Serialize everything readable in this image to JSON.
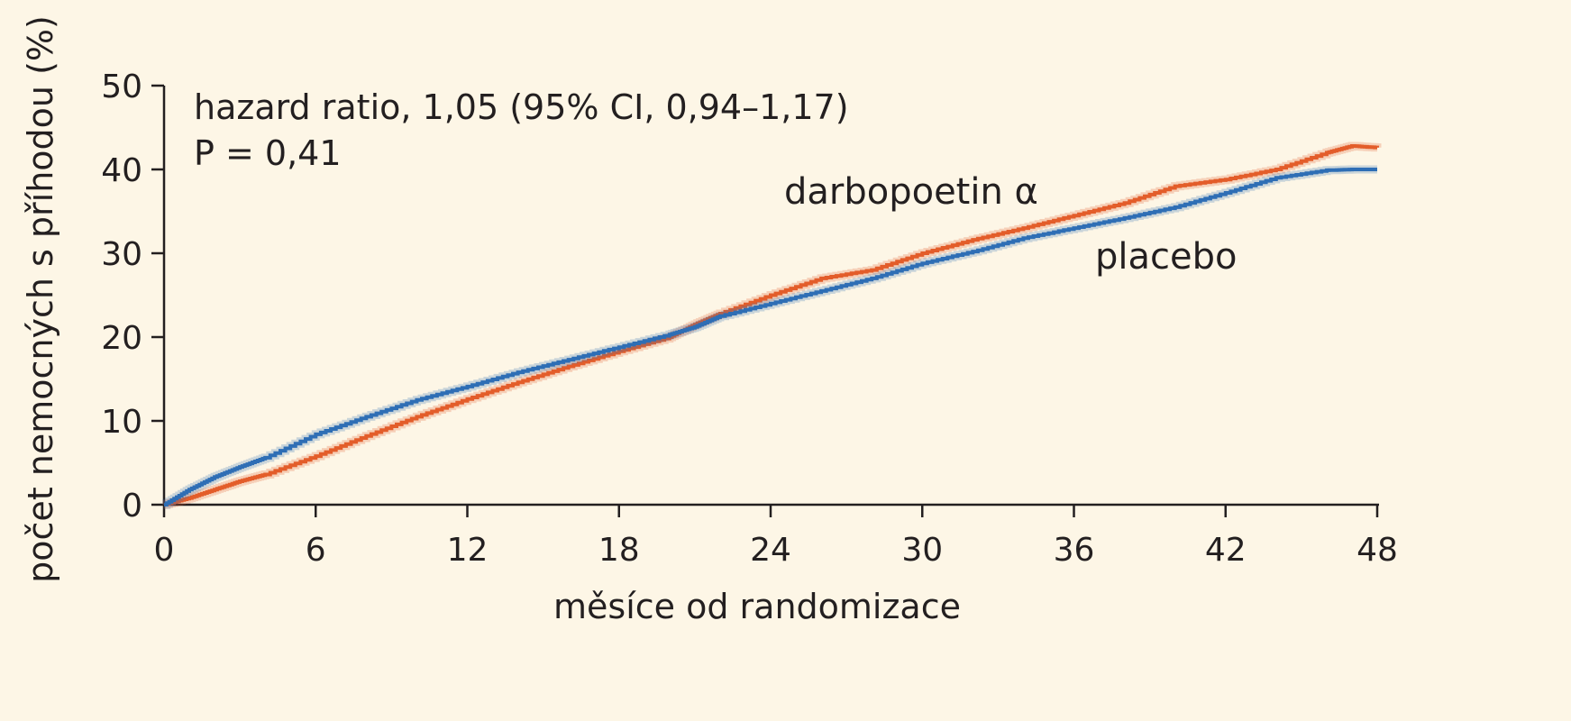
{
  "chart_data": {
    "type": "line",
    "xlabel": "měsíce od randomizace",
    "ylabel": "počet nemocných s příhodou (%)",
    "xlim": [
      0,
      48
    ],
    "ylim": [
      0,
      50
    ],
    "xticks": [
      "0",
      "6",
      "12",
      "18",
      "24",
      "30",
      "36",
      "42",
      "48"
    ],
    "yticks": [
      "0",
      "10",
      "20",
      "30",
      "40",
      "50"
    ],
    "grid": false,
    "annotations": [
      "hazard ratio, 1,05 (95% CI, 0,94–1,17)",
      "P = 0,41"
    ],
    "series": [
      {
        "name": "darbopoetin α",
        "color": "#e35d2a",
        "x": [
          0,
          1,
          2,
          3,
          4,
          6,
          8,
          10,
          12,
          14,
          16,
          18,
          20,
          21,
          22,
          24,
          26,
          28,
          30,
          32,
          34,
          36,
          38,
          40,
          42,
          44,
          46,
          47,
          48
        ],
        "y": [
          0,
          0.8,
          1.8,
          2.8,
          3.6,
          5.8,
          8.2,
          10.5,
          12.6,
          14.6,
          16.5,
          18.3,
          20.0,
          21.5,
          22.8,
          25.0,
          27.0,
          28.0,
          30.0,
          31.6,
          33.0,
          34.5,
          36.0,
          38.0,
          38.8,
          40.0,
          42.0,
          42.8,
          42.6
        ]
      },
      {
        "name": "placebo",
        "color": "#2e6eb5",
        "x": [
          0,
          1,
          2,
          3,
          4,
          6,
          8,
          10,
          12,
          14,
          16,
          18,
          20,
          21,
          22,
          24,
          26,
          28,
          30,
          32,
          34,
          36,
          38,
          40,
          42,
          44,
          46,
          47,
          48
        ],
        "y": [
          0,
          1.8,
          3.3,
          4.5,
          5.6,
          8.4,
          10.5,
          12.5,
          14.1,
          15.8,
          17.3,
          18.8,
          20.3,
          21.2,
          22.5,
          24.0,
          25.5,
          27.0,
          28.8,
          30.2,
          31.8,
          33.0,
          34.2,
          35.5,
          37.2,
          39.0,
          39.9,
          40.0,
          40.0
        ]
      }
    ]
  }
}
